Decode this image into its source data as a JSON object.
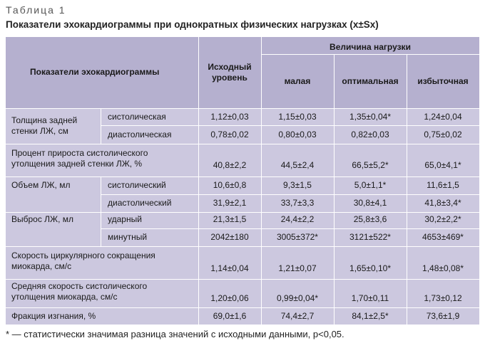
{
  "table_label": "Таблица 1",
  "title": "Показатели эхокардиограммы при однократных физических нагрузках (x±Sx)",
  "header": {
    "indicators": "Показатели эхокардиограммы",
    "baseline_line1": "Исходный",
    "baseline_line2": "уровень",
    "load_group": "Величина нагрузки",
    "small": "малая",
    "optimal": "оптимальная",
    "excessive": "избыточная"
  },
  "rows": {
    "thickness_label_1": "Толщина задней",
    "thickness_label_2": "стенки ЛЖ, см",
    "systolic_f": "систолическая",
    "diastolic_f": "диастолическая",
    "r1": [
      "1,12±0,03",
      "1,15±0,03",
      "1,35±0,04*",
      "1,24±0,04"
    ],
    "r2": [
      "0,78±0,02",
      "0,80±0,03",
      "0,82±0,03",
      "0,75±0,02"
    ],
    "pct_label_1": "Процент прироста систолического",
    "pct_label_2": "утолщения задней стенки ЛЖ, %",
    "r3": [
      "40,8±2,2",
      "44,5±2,4",
      "66,5±5,2*",
      "65,0±4,1*"
    ],
    "volume_label": "Объем ЛЖ, мл",
    "systolic_m": "систолический",
    "diastolic_m": "диастолический",
    "r4": [
      "10,6±0,8",
      "9,3±1,5",
      "5,0±1,1*",
      "11,6±1,5"
    ],
    "r5": [
      "31,9±2,1",
      "33,7±3,3",
      "30,8±4,1",
      "41,8±3,4*"
    ],
    "output_label": "Выброс ЛЖ, мл",
    "stroke": "ударный",
    "minute": "минутный",
    "r6": [
      "21,3±1,5",
      "24,4±2,2",
      "25,8±3,6",
      "30,2±2,2*"
    ],
    "r7": [
      "2042±180",
      "3005±372*",
      "3121±522*",
      "4653±469*"
    ],
    "circ_label_1": "Скорость циркулярного сокращения",
    "circ_label_2": "миокарда, см/с",
    "r8": [
      "1,14±0,04",
      "1,21±0,07",
      "1,65±0,10*",
      "1,48±0,08*"
    ],
    "avg_label_1": "Средняя скорость систолического",
    "avg_label_2": "утолщения миокарда, см/с",
    "r9": [
      "1,20±0,06",
      "0,99±0,04*",
      "1,70±0,11",
      "1,73±0,12"
    ],
    "ef_label": "Фракция изгнания, %",
    "r10": [
      "69,0±1,6",
      "74,4±2,7",
      "84,1±2,5*",
      "73,6±1,9"
    ]
  },
  "footnote": "* — статистически значимая разница значений с исходными данными, p<0,05."
}
